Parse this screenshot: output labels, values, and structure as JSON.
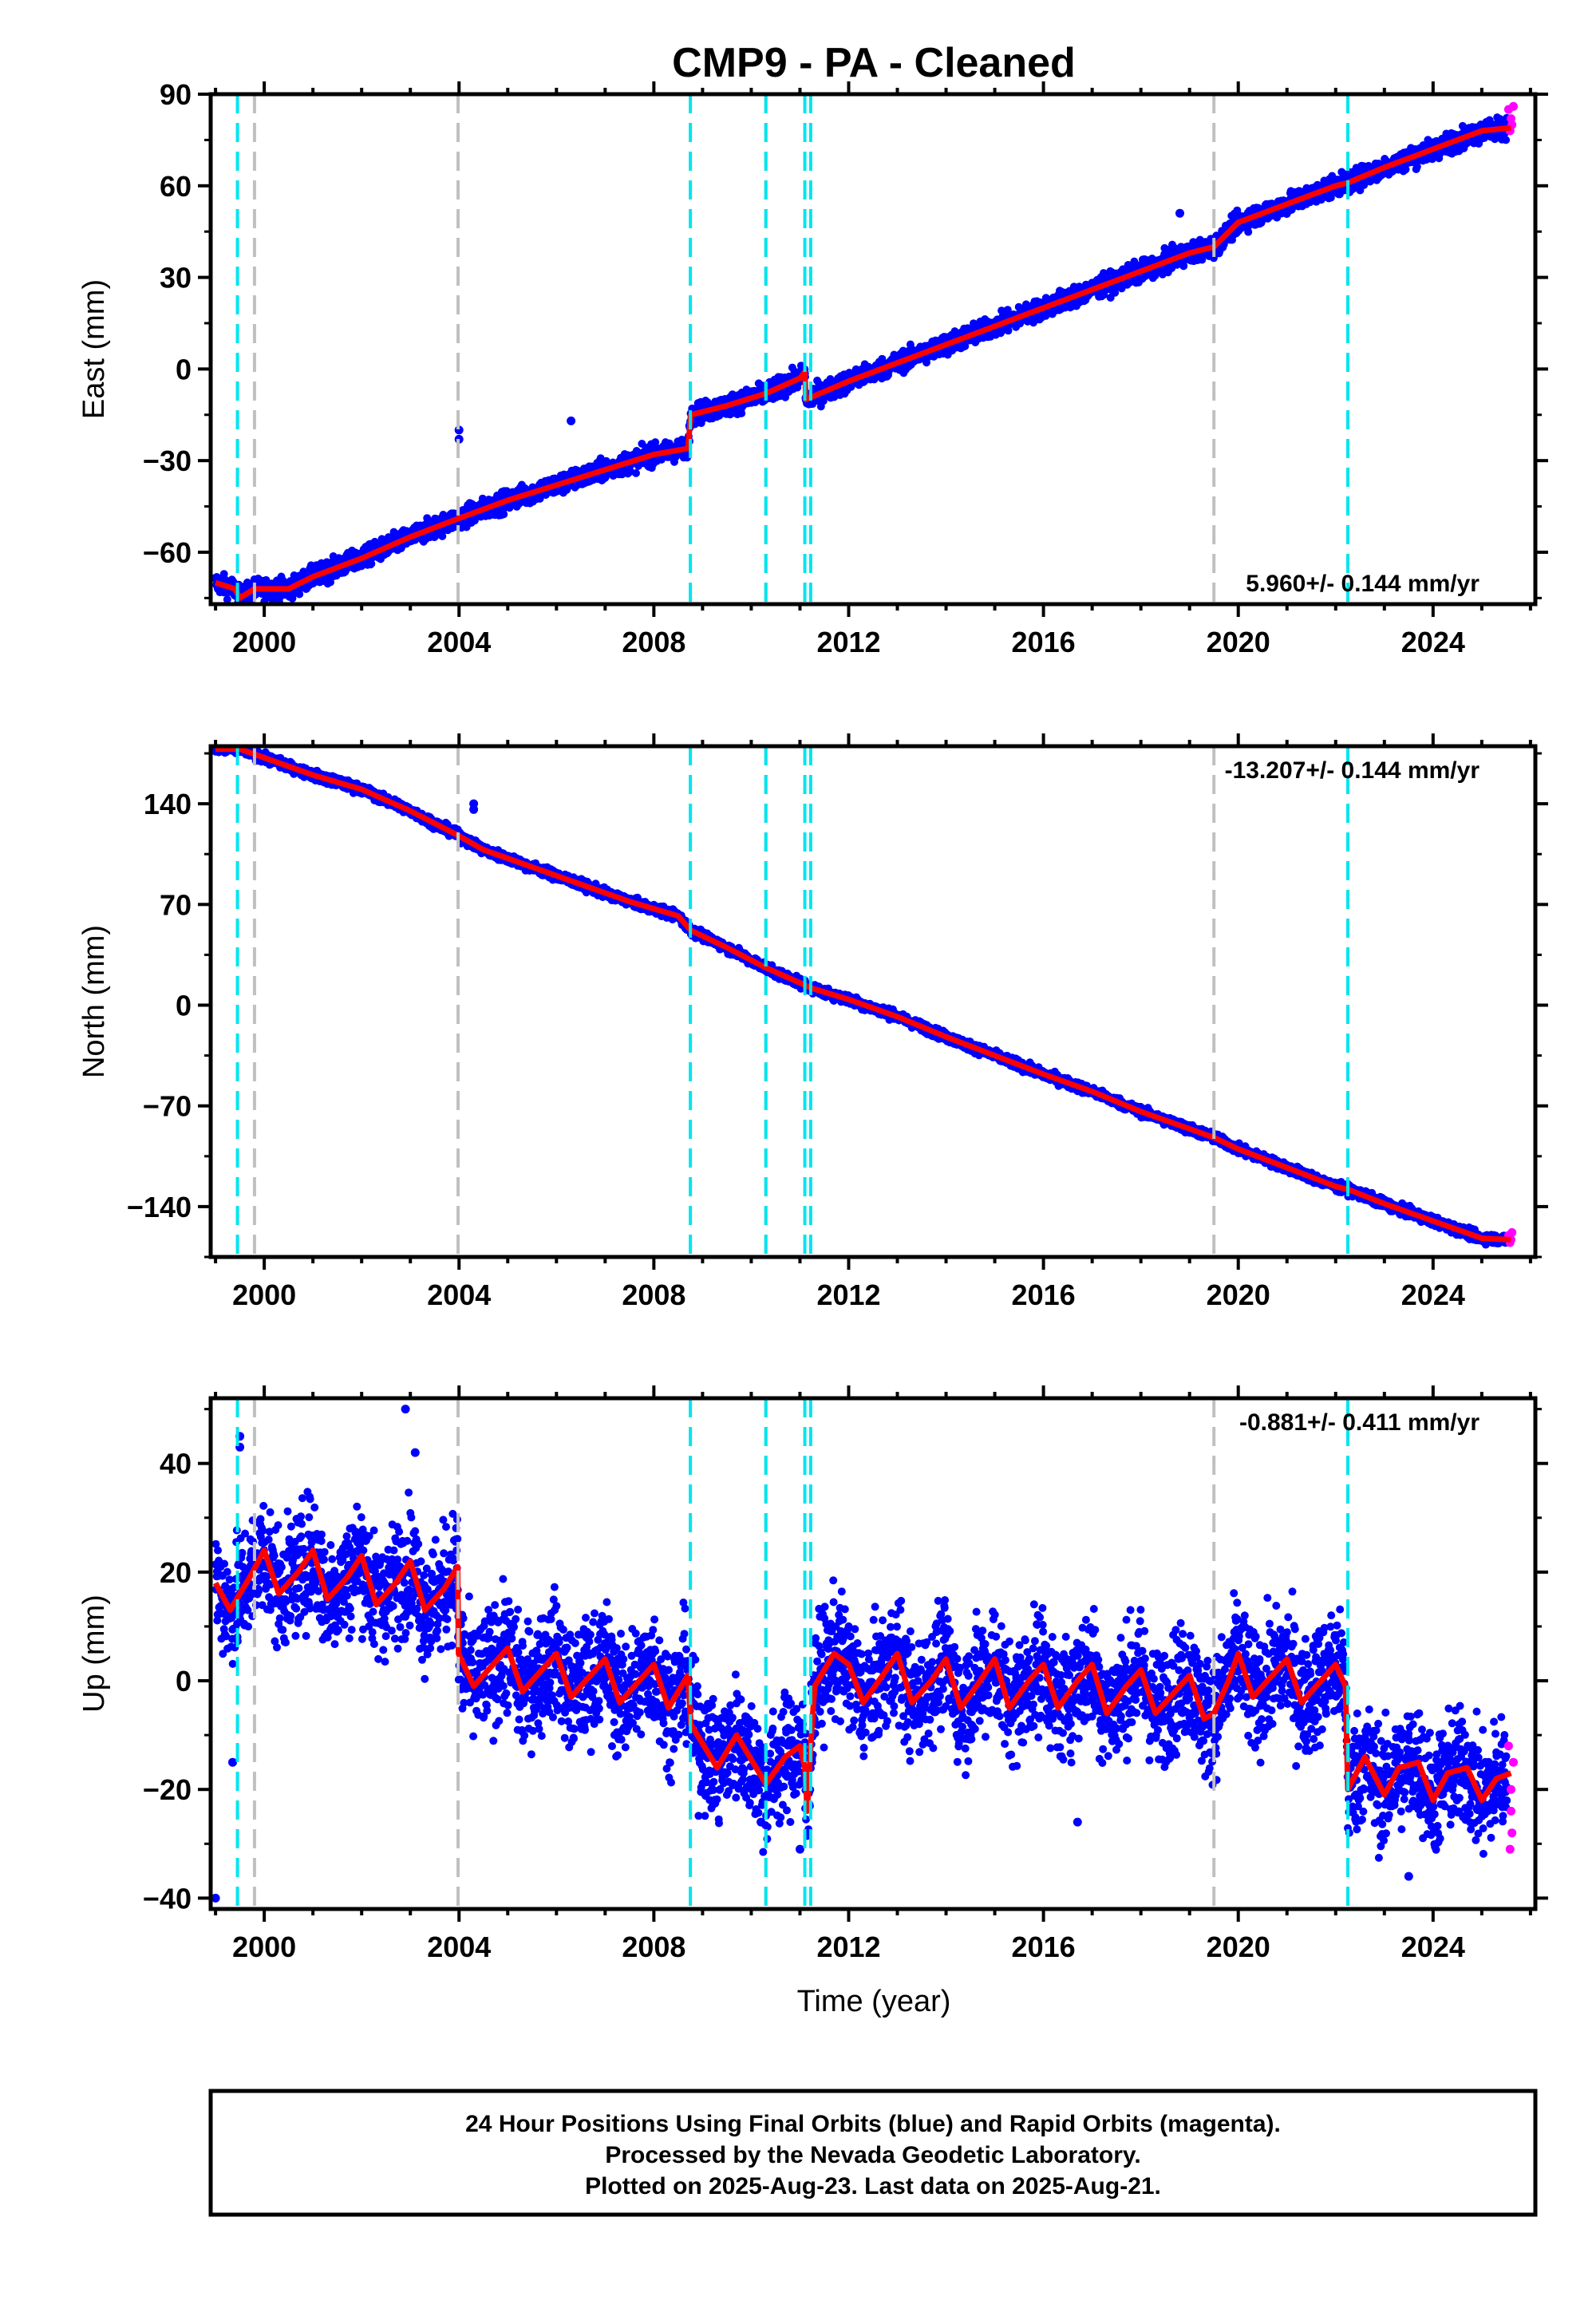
{
  "title": "CMP9  - PA - Cleaned",
  "colors": {
    "final_orbits": "#0000ff",
    "rapid_orbits": "#ff00ff",
    "model": "#ff0000",
    "equipment_change": "#00e5ee",
    "earthquake": "#c0c0c0"
  },
  "x_axis": {
    "label": "Time (year)",
    "range": [
      1998.9,
      2026.1
    ],
    "ticks": [
      2000,
      2004,
      2008,
      2012,
      2016,
      2020,
      2024
    ],
    "minor_tick_step": 1
  },
  "event_lines": {
    "cyan": [
      1999.45,
      2008.75,
      2010.3,
      2011.1,
      2011.22,
      2022.25
    ],
    "gray": [
      1999.8,
      2003.98,
      2010.3,
      2019.5
    ]
  },
  "footer": {
    "lines": [
      "24 Hour Positions Using Final Orbits (blue) and Rapid Orbits (magenta).",
      "Processed by the Nevada Geodetic Laboratory.",
      "Plotted on 2025-Aug-23. Last data on 2025-Aug-21."
    ]
  },
  "chart_data": [
    {
      "type": "scatter",
      "component": "East",
      "ylabel": "East (mm)",
      "ylim": [
        -77,
        90
      ],
      "yticks": [
        -60,
        -30,
        0,
        30,
        60,
        90
      ],
      "rate_label": "5.960+/- 0.144 mm/yr",
      "rate_position": "bottom-right",
      "model_series": [
        [
          1999.0,
          -70
        ],
        [
          1999.4,
          -72
        ],
        [
          1999.5,
          -75
        ],
        [
          1999.8,
          -72
        ],
        [
          2000.5,
          -72
        ],
        [
          2001,
          -68
        ],
        [
          2002,
          -62
        ],
        [
          2003,
          -55
        ],
        [
          2003.98,
          -49
        ],
        [
          2005,
          -43
        ],
        [
          2006,
          -38
        ],
        [
          2007,
          -33
        ],
        [
          2008,
          -28
        ],
        [
          2008.7,
          -26
        ],
        [
          2008.76,
          -15
        ],
        [
          2009.5,
          -12
        ],
        [
          2010.3,
          -8
        ],
        [
          2011.0,
          -3
        ],
        [
          2011.1,
          -1
        ],
        [
          2011.12,
          -10
        ],
        [
          2012,
          -4
        ],
        [
          2013,
          2
        ],
        [
          2014,
          8
        ],
        [
          2015,
          14
        ],
        [
          2016,
          20
        ],
        [
          2017,
          26
        ],
        [
          2018,
          32
        ],
        [
          2019,
          38
        ],
        [
          2019.5,
          40
        ],
        [
          2020,
          48
        ],
        [
          2021,
          54
        ],
        [
          2022,
          60
        ],
        [
          2022.25,
          61
        ],
        [
          2023,
          66
        ],
        [
          2024,
          72
        ],
        [
          2025,
          78
        ],
        [
          2025.6,
          79
        ]
      ],
      "scatter_scale_mm": 3,
      "outliers": [
        [
          2004.0,
          -20
        ],
        [
          2004.0,
          -23
        ],
        [
          2006.3,
          -17
        ],
        [
          2018.8,
          51
        ]
      ],
      "rapid_points": [
        [
          2025.55,
          85
        ],
        [
          2025.6,
          82
        ],
        [
          2025.62,
          80
        ],
        [
          2025.65,
          86
        ],
        [
          2025.58,
          78
        ]
      ]
    },
    {
      "type": "scatter",
      "component": "North",
      "ylabel": "North (mm)",
      "ylim": [
        -175,
        180
      ],
      "yticks": [
        -140,
        -70,
        0,
        70,
        140
      ],
      "rate_label": "-13.207+/- 0.144 mm/yr",
      "rate_position": "top-right",
      "model_series": [
        [
          1999.0,
          178
        ],
        [
          1999.5,
          178
        ],
        [
          2000,
          172
        ],
        [
          2001,
          160
        ],
        [
          2002,
          150
        ],
        [
          2003,
          135
        ],
        [
          2003.98,
          118
        ],
        [
          2004.5,
          108
        ],
        [
          2005.5,
          96
        ],
        [
          2006.5,
          84
        ],
        [
          2007.5,
          72
        ],
        [
          2008.5,
          62
        ],
        [
          2008.76,
          52
        ],
        [
          2009.5,
          40
        ],
        [
          2010.3,
          26
        ],
        [
          2011.1,
          14
        ],
        [
          2011.22,
          12
        ],
        [
          2012,
          4
        ],
        [
          2013,
          -8
        ],
        [
          2014,
          -22
        ],
        [
          2015,
          -35
        ],
        [
          2016,
          -48
        ],
        [
          2017,
          -60
        ],
        [
          2018,
          -74
        ],
        [
          2019,
          -86
        ],
        [
          2019.5,
          -92
        ],
        [
          2020,
          -100
        ],
        [
          2021,
          -113
        ],
        [
          2022,
          -126
        ],
        [
          2022.25,
          -128
        ],
        [
          2023,
          -138
        ],
        [
          2024,
          -150
        ],
        [
          2025,
          -162
        ],
        [
          2025.6,
          -163
        ]
      ],
      "scatter_scale_mm": 3,
      "outliers": [
        [
          2004.3,
          140
        ],
        [
          2004.3,
          136
        ]
      ],
      "rapid_points": [
        [
          2025.55,
          -160
        ],
        [
          2025.6,
          -163
        ],
        [
          2025.62,
          -158
        ],
        [
          2025.58,
          -165
        ]
      ]
    },
    {
      "type": "scatter",
      "component": "Up",
      "ylabel": "Up (mm)",
      "ylim": [
        -42,
        52
      ],
      "yticks": [
        -40,
        -20,
        0,
        20,
        40
      ],
      "rate_label": "-0.881+/- 0.411 mm/yr",
      "rate_position": "top-right",
      "model_series": [
        [
          1999.0,
          18
        ],
        [
          1999.3,
          13
        ],
        [
          1999.7,
          19
        ],
        [
          2000.0,
          24
        ],
        [
          2000.3,
          16
        ],
        [
          2000.7,
          20
        ],
        [
          2001.0,
          24
        ],
        [
          2001.3,
          15
        ],
        [
          2001.7,
          19
        ],
        [
          2002.0,
          23
        ],
        [
          2002.3,
          14
        ],
        [
          2002.7,
          18
        ],
        [
          2003.0,
          22
        ],
        [
          2003.3,
          13
        ],
        [
          2003.7,
          17
        ],
        [
          2003.97,
          21
        ],
        [
          2003.99,
          5
        ],
        [
          2004.3,
          -1
        ],
        [
          2004.7,
          3
        ],
        [
          2005.0,
          6
        ],
        [
          2005.3,
          -2
        ],
        [
          2005.7,
          2
        ],
        [
          2006.0,
          5
        ],
        [
          2006.3,
          -3
        ],
        [
          2006.7,
          1
        ],
        [
          2007.0,
          4
        ],
        [
          2007.3,
          -4
        ],
        [
          2007.7,
          0
        ],
        [
          2008.0,
          3
        ],
        [
          2008.3,
          -5
        ],
        [
          2008.7,
          1
        ],
        [
          2008.76,
          -8
        ],
        [
          2009.3,
          -16
        ],
        [
          2009.7,
          -10
        ],
        [
          2010.3,
          -19
        ],
        [
          2010.7,
          -14
        ],
        [
          2011.0,
          -12
        ],
        [
          2011.1,
          -16
        ],
        [
          2011.15,
          -24
        ],
        [
          2011.22,
          -12
        ],
        [
          2011.3,
          -1
        ],
        [
          2011.7,
          5
        ],
        [
          2012.0,
          3
        ],
        [
          2012.3,
          -4
        ],
        [
          2012.7,
          1
        ],
        [
          2013.0,
          5
        ],
        [
          2013.3,
          -4
        ],
        [
          2013.7,
          0
        ],
        [
          2014.0,
          4
        ],
        [
          2014.3,
          -5
        ],
        [
          2014.7,
          0
        ],
        [
          2015.0,
          4
        ],
        [
          2015.3,
          -5
        ],
        [
          2015.7,
          0
        ],
        [
          2016.0,
          3
        ],
        [
          2016.3,
          -5
        ],
        [
          2016.7,
          0
        ],
        [
          2017.0,
          3
        ],
        [
          2017.3,
          -6
        ],
        [
          2017.7,
          -1
        ],
        [
          2018.0,
          2
        ],
        [
          2018.3,
          -6
        ],
        [
          2018.7,
          -2
        ],
        [
          2019.0,
          1
        ],
        [
          2019.3,
          -7
        ],
        [
          2019.5,
          -6
        ],
        [
          2019.8,
          0
        ],
        [
          2020.0,
          5
        ],
        [
          2020.3,
          -3
        ],
        [
          2020.7,
          1
        ],
        [
          2021.0,
          4
        ],
        [
          2021.3,
          -4
        ],
        [
          2021.7,
          0
        ],
        [
          2022.0,
          3
        ],
        [
          2022.2,
          -1
        ],
        [
          2022.25,
          -20
        ],
        [
          2022.6,
          -14
        ],
        [
          2023.0,
          -21
        ],
        [
          2023.3,
          -16
        ],
        [
          2023.7,
          -15
        ],
        [
          2024.0,
          -22
        ],
        [
          2024.3,
          -17
        ],
        [
          2024.7,
          -16
        ],
        [
          2025.0,
          -22
        ],
        [
          2025.3,
          -18
        ],
        [
          2025.6,
          -17
        ]
      ],
      "scatter_scale_mm": 10,
      "outliers": [
        [
          1999.5,
          45
        ],
        [
          1999.5,
          43
        ],
        [
          1999.35,
          -15
        ],
        [
          1999.0,
          -40
        ],
        [
          2002.9,
          50
        ],
        [
          2003.1,
          42
        ],
        [
          2023.5,
          -36
        ],
        [
          2011.0,
          -31
        ],
        [
          2016.7,
          -26
        ],
        [
          2010.2,
          -26
        ]
      ],
      "rapid_points": [
        [
          2025.55,
          -12
        ],
        [
          2025.6,
          -20
        ],
        [
          2025.62,
          -28
        ],
        [
          2025.58,
          -31
        ],
        [
          2025.65,
          -15
        ],
        [
          2025.6,
          -24
        ]
      ]
    }
  ]
}
